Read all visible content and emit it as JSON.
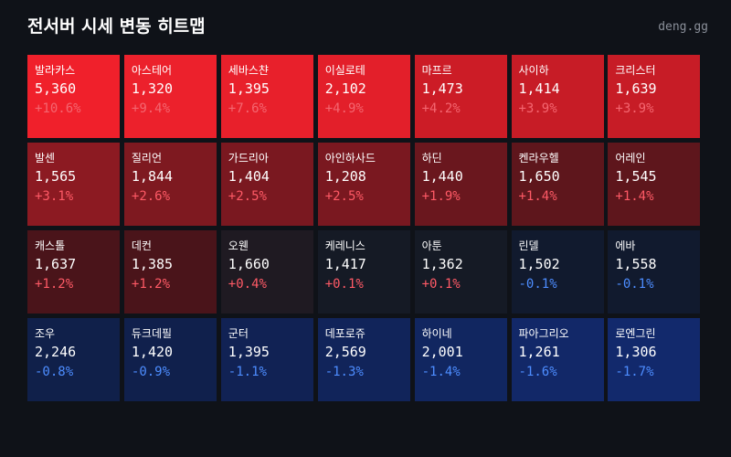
{
  "header": {
    "title": "전서버 시세 변동 히트맵",
    "brand": "deng.gg"
  },
  "tiles": [
    {
      "name": "발라카스",
      "price": "5,360",
      "change": "+10.6%",
      "color": "#f0202b",
      "change_color": "#f46670"
    },
    {
      "name": "아스테어",
      "price": "1,320",
      "change": "+9.4%",
      "color": "#ec212c",
      "change_color": "#f46670"
    },
    {
      "name": "세바스챤",
      "price": "1,395",
      "change": "+7.6%",
      "color": "#e8202b",
      "change_color": "#f46670"
    },
    {
      "name": "이실로테",
      "price": "2,102",
      "change": "+4.9%",
      "color": "#e31f2a",
      "change_color": "#f46670"
    },
    {
      "name": "마프르",
      "price": "1,473",
      "change": "+4.2%",
      "color": "#cc1c26",
      "change_color": "#f46670"
    },
    {
      "name": "사이하",
      "price": "1,414",
      "change": "+3.9%",
      "color": "#c71c26",
      "change_color": "#f46670"
    },
    {
      "name": "크리스터",
      "price": "1,639",
      "change": "+3.9%",
      "color": "#c71c26",
      "change_color": "#f46670"
    },
    {
      "name": "발센",
      "price": "1,565",
      "change": "+3.1%",
      "color": "#8c1a22",
      "change_color": "#ff5a66"
    },
    {
      "name": "질리언",
      "price": "1,844",
      "change": "+2.6%",
      "color": "#7e1920",
      "change_color": "#ff5a66"
    },
    {
      "name": "가드리아",
      "price": "1,404",
      "change": "+2.5%",
      "color": "#7a1820",
      "change_color": "#ff5a66"
    },
    {
      "name": "아인하사드",
      "price": "1,208",
      "change": "+2.5%",
      "color": "#7a1820",
      "change_color": "#ff5a66"
    },
    {
      "name": "하딘",
      "price": "1,440",
      "change": "+1.9%",
      "color": "#6a171e",
      "change_color": "#ff5a66"
    },
    {
      "name": "켄라우헬",
      "price": "1,650",
      "change": "+1.4%",
      "color": "#5e161c",
      "change_color": "#ff5a66"
    },
    {
      "name": "어레인",
      "price": "1,545",
      "change": "+1.4%",
      "color": "#5e161c",
      "change_color": "#ff5a66"
    },
    {
      "name": "캐스톨",
      "price": "1,637",
      "change": "+1.2%",
      "color": "#4a141a",
      "change_color": "#ff5a66"
    },
    {
      "name": "데컨",
      "price": "1,385",
      "change": "+1.2%",
      "color": "#4a141a",
      "change_color": "#ff5a66"
    },
    {
      "name": "오웬",
      "price": "1,660",
      "change": "+0.4%",
      "color": "#1f1a22",
      "change_color": "#ff5a66"
    },
    {
      "name": "케레니스",
      "price": "1,417",
      "change": "+0.1%",
      "color": "#151a25",
      "change_color": "#ff5a66"
    },
    {
      "name": "아툰",
      "price": "1,362",
      "change": "+0.1%",
      "color": "#151a25",
      "change_color": "#ff5a66"
    },
    {
      "name": "린델",
      "price": "1,502",
      "change": "-0.1%",
      "color": "#111a2e",
      "change_color": "#4d8dff"
    },
    {
      "name": "에바",
      "price": "1,558",
      "change": "-0.1%",
      "color": "#111a2e",
      "change_color": "#4d8dff"
    },
    {
      "name": "조우",
      "price": "2,246",
      "change": "-0.8%",
      "color": "#10204a",
      "change_color": "#4d8dff"
    },
    {
      "name": "듀크데필",
      "price": "1,420",
      "change": "-0.9%",
      "color": "#10204c",
      "change_color": "#4d8dff"
    },
    {
      "name": "군터",
      "price": "1,395",
      "change": "-1.1%",
      "color": "#112254",
      "change_color": "#4d8dff"
    },
    {
      "name": "데포로쥬",
      "price": "2,569",
      "change": "-1.3%",
      "color": "#11245a",
      "change_color": "#4d8dff"
    },
    {
      "name": "하이네",
      "price": "2,001",
      "change": "-1.4%",
      "color": "#112660",
      "change_color": "#4d8dff"
    },
    {
      "name": "파아그리오",
      "price": "1,261",
      "change": "-1.6%",
      "color": "#122868",
      "change_color": "#4d8dff"
    },
    {
      "name": "로엔그린",
      "price": "1,306",
      "change": "-1.7%",
      "color": "#12296c",
      "change_color": "#4d8dff"
    }
  ]
}
